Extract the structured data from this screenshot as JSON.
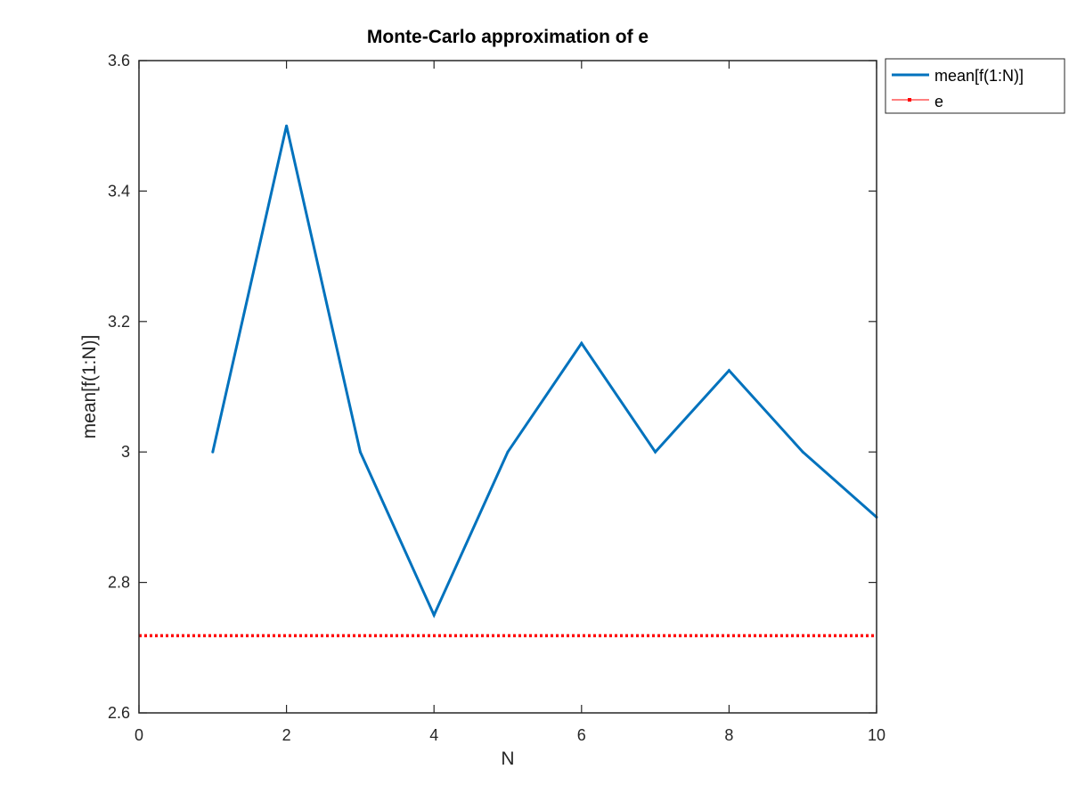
{
  "chart_data": {
    "type": "line",
    "title": "Monte-Carlo approximation of e",
    "xlabel": "N",
    "ylabel": "mean[f(1:N)]",
    "xlim": [
      0,
      10
    ],
    "ylim": [
      2.6,
      3.6
    ],
    "xticks": [
      0,
      2,
      4,
      6,
      8,
      10
    ],
    "yticks": [
      2.6,
      2.8,
      3,
      3.2,
      3.4,
      3.6
    ],
    "xtick_labels": [
      "0",
      "2",
      "4",
      "6",
      "8",
      "10"
    ],
    "ytick_labels": [
      "2.6",
      "2.8",
      "3",
      "3.2",
      "3.4",
      "3.6"
    ],
    "grid": false,
    "legend_position": "outside-top-right",
    "series": [
      {
        "name": "mean[f(1:N)]",
        "color": "#0072bd",
        "style": "solid",
        "x": [
          1,
          2,
          3,
          4,
          5,
          6,
          7,
          8,
          9,
          10
        ],
        "y": [
          3.0,
          3.5,
          3.0,
          2.75,
          3.0,
          3.1667,
          3.0,
          3.125,
          3.0,
          2.9
        ]
      },
      {
        "name": "e",
        "color": "#ff0000",
        "style": "dotted",
        "x": [
          0,
          10
        ],
        "y": [
          2.71828,
          2.71828
        ]
      }
    ]
  }
}
